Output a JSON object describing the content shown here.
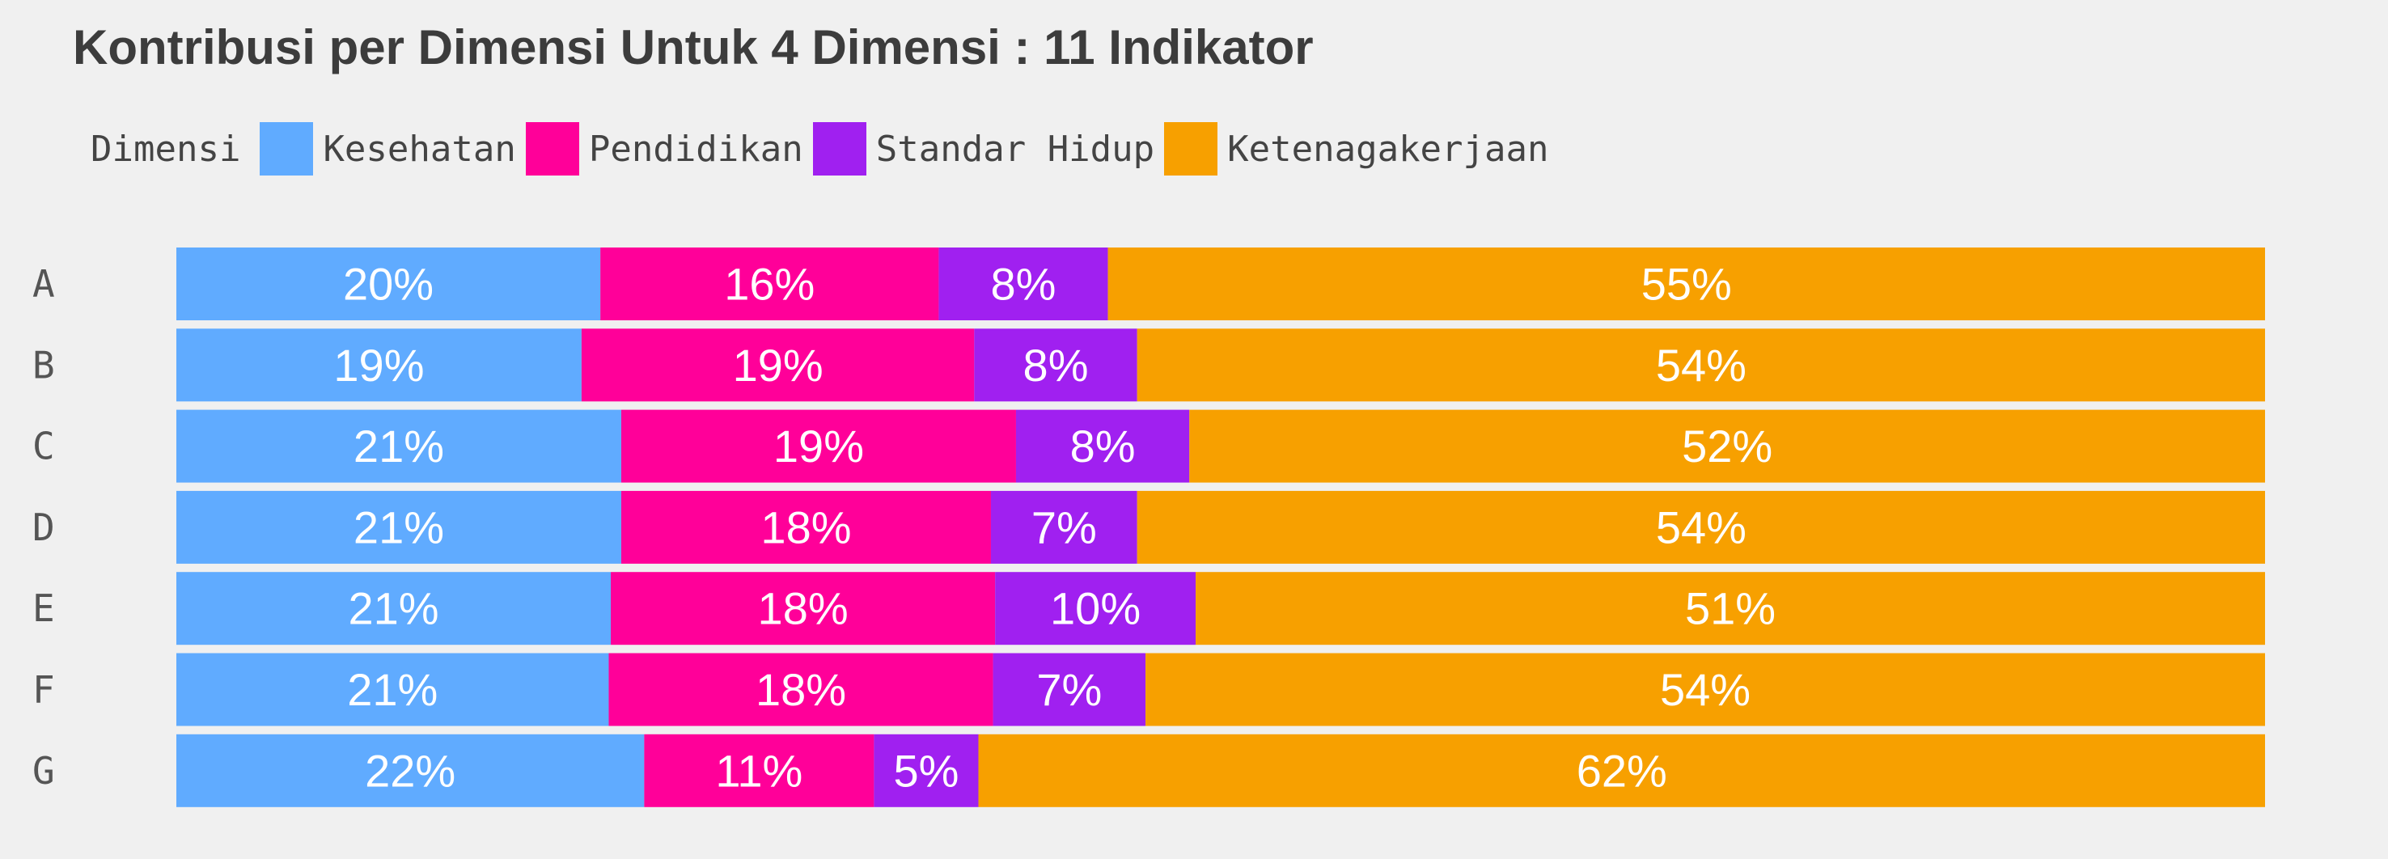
{
  "chart_data": {
    "type": "bar",
    "orientation": "horizontal",
    "stacked": true,
    "normalized": true,
    "title": "Kontribusi per Dimensi Untuk 4 Dimensi : 11 Indikator",
    "legend_title": "Dimensi",
    "legend_position": "top-left",
    "categories": [
      "A",
      "B",
      "C",
      "D",
      "E",
      "F",
      "G"
    ],
    "series": [
      {
        "name": "Kesehatan",
        "color": "#60abff",
        "values": [
          20.3,
          19.4,
          21.3,
          21.3,
          20.8,
          20.7,
          22.4
        ],
        "labels": [
          "20%",
          "19%",
          "21%",
          "21%",
          "21%",
          "21%",
          "22%"
        ]
      },
      {
        "name": "Pendidikan",
        "color": "#ff0099",
        "values": [
          16.2,
          18.8,
          18.9,
          17.7,
          18.4,
          18.4,
          11.0
        ],
        "labels": [
          "16%",
          "19%",
          "19%",
          "18%",
          "18%",
          "18%",
          "11%"
        ]
      },
      {
        "name": "Standar Hidup",
        "color": "#a020f0",
        "values": [
          8.1,
          7.8,
          8.3,
          7.0,
          9.6,
          7.3,
          5.0
        ],
        "labels": [
          "8%",
          "8%",
          "8%",
          "7%",
          "10%",
          "7%",
          "5%"
        ]
      },
      {
        "name": "Ketenagakerjaan",
        "color": "#f7a000",
        "values": [
          55.4,
          54.0,
          51.5,
          54.0,
          51.2,
          53.6,
          61.6
        ],
        "labels": [
          "55%",
          "54%",
          "52%",
          "54%",
          "51%",
          "54%",
          "62%"
        ]
      }
    ],
    "xlim": [
      0,
      100
    ],
    "grid": false
  }
}
